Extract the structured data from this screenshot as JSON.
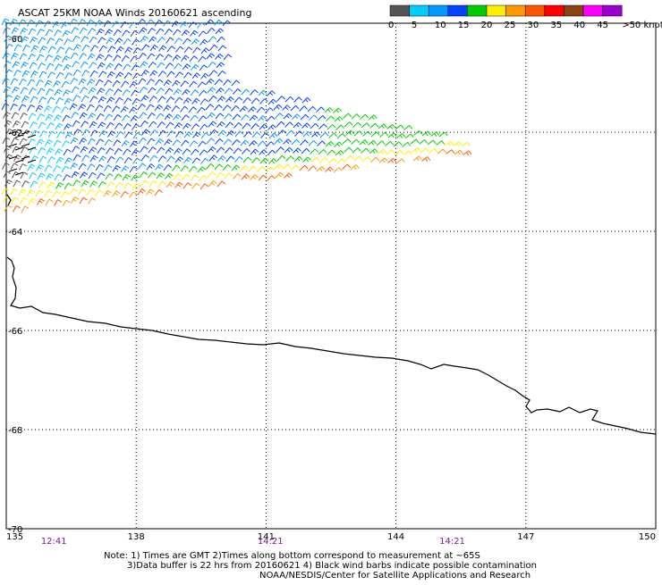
{
  "title": "ASCAT 25KM NOAA Winds 20160621 ascending",
  "scale": {
    "colors": [
      "#555555",
      "#00ccff",
      "#0099ff",
      "#0044ff",
      "#00cc00",
      "#ffee00",
      "#ff9900",
      "#ff5500",
      "#ff0000",
      "#8b4513",
      "#ff00ff",
      "#9900cc"
    ],
    "labels": [
      "0",
      "5",
      "10",
      "15",
      "20",
      "25",
      "30",
      "35",
      "40",
      "45",
      ">50 knots"
    ]
  },
  "map_data": {
    "lat_range": [
      -70,
      -59.8
    ],
    "lon_range": [
      135,
      150
    ],
    "lat_labels": [
      "-60",
      "-62",
      "-64",
      "-66",
      "-68",
      "-70"
    ],
    "lat_values": [
      -60,
      -62,
      -64,
      -66,
      -68,
      -70
    ],
    "lon_labels": [
      "135",
      "138",
      "141",
      "144",
      "147",
      "150"
    ],
    "lon_values": [
      135,
      138,
      141,
      144,
      147,
      150
    ],
    "time_labels": [
      "12:41",
      "14:21",
      "14:21"
    ],
    "time_lons": [
      136.1,
      141.1,
      145.3
    ]
  },
  "notes": [
    "Note: 1) Times are GMT 2)Times along bottom correspond to measurement at ~65S",
    "3)Data buffer is 22 hrs from 20160621 4) Black wind barbs indicate possible contamination",
    "NOAA/NESDIS/Center for Satellite Applications and Research"
  ]
}
